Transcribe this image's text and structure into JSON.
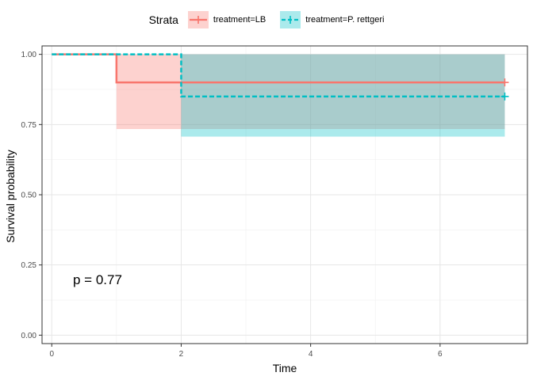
{
  "chart_data": {
    "type": "step-survival",
    "title": "",
    "xlabel": "Time",
    "ylabel": "Survival probability",
    "xlim": [
      -0.15,
      7.35
    ],
    "ylim": [
      -0.03,
      1.03
    ],
    "x_ticks": [
      0,
      2,
      4,
      6
    ],
    "x_tick_labels": [
      "0",
      "2",
      "4",
      "6"
    ],
    "y_ticks": [
      0.0,
      0.25,
      0.5,
      0.75,
      1.0
    ],
    "y_tick_labels": [
      "0.00",
      "0.25",
      "0.50",
      "0.75",
      "1.00"
    ],
    "grid": true,
    "legend": {
      "title": "Strata",
      "placement": "top"
    },
    "annotation": "p = 0.77",
    "series": [
      {
        "name": "treatment=LB",
        "color": "#F8766D",
        "line_style": "solid",
        "steps": [
          {
            "x": 0,
            "y": 1.0
          },
          {
            "x": 1,
            "y": 0.9
          },
          {
            "x": 7,
            "y": 0.9
          }
        ],
        "ci": [
          {
            "x0": 1,
            "x1": 7,
            "lower": 0.734,
            "upper": 1.0
          }
        ],
        "censor_marks": [
          {
            "x": 7,
            "y": 0.9
          }
        ]
      },
      {
        "name": "treatment=P. rettgeri",
        "color": "#00BFC4",
        "line_style": "dashed",
        "steps": [
          {
            "x": 0,
            "y": 1.0
          },
          {
            "x": 2,
            "y": 0.85
          },
          {
            "x": 7,
            "y": 0.85
          }
        ],
        "ci": [
          {
            "x0": 2,
            "x1": 7,
            "lower": 0.707,
            "upper": 1.0
          }
        ],
        "censor_marks": [
          {
            "x": 7,
            "y": 0.85
          }
        ]
      }
    ]
  }
}
